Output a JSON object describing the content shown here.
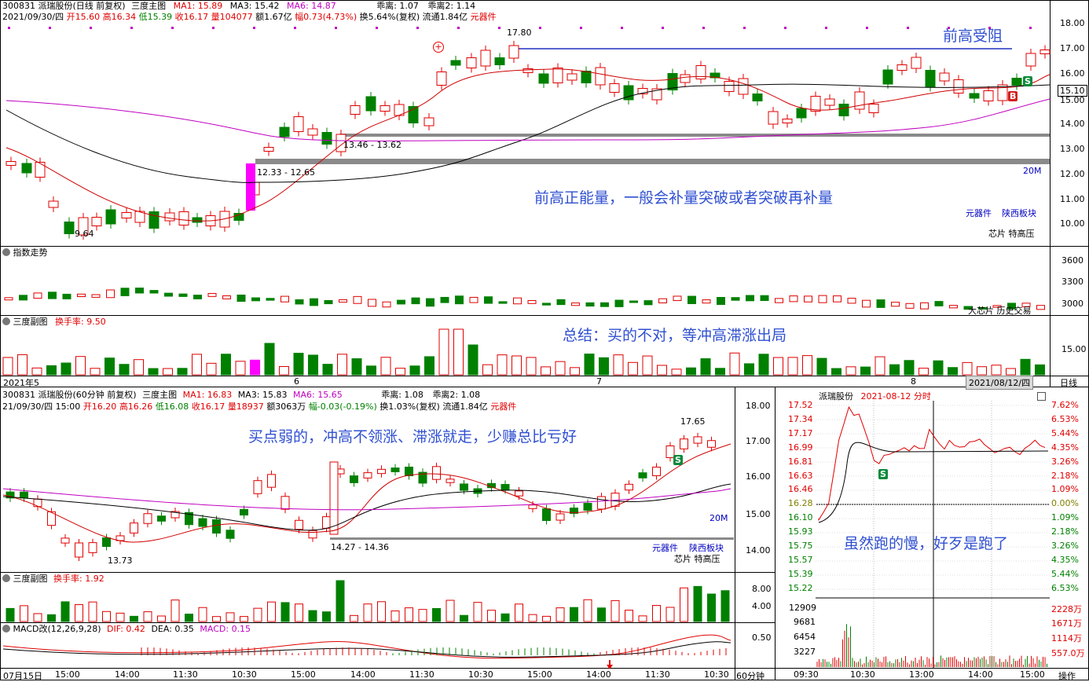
{
  "top_chart": {
    "header_line1": {
      "code_name": "300831 派瑞股份(日线 前复权)",
      "main": "三度主图",
      "ma1": "MA1: 15.89",
      "ma3": "MA3: 15.42",
      "ma6": "MA6: 14.87",
      "cheng1": "乖离: 1.07",
      "cheng2": "乖离2: 1.14"
    },
    "header_line2": {
      "date": "2021/09/30/四",
      "open": "开15.60",
      "high": "高16.34",
      "low": "低15.39",
      "close": "收16.17",
      "vol": "量104077",
      "amount": "额1.67亿",
      "change": "幅0.73(4.73%)",
      "turnover": "换5.64%(复权)",
      "float": "流通1.84亿",
      "sector": "元器件"
    },
    "price_axis": [
      "18.00",
      "17.00",
      "16.00",
      "15.10",
      "15.00",
      "14.00",
      "13.00",
      "12.00",
      "11.00",
      "10.00"
    ],
    "labels": {
      "high": "17.80",
      "low": "9.64",
      "range1": "12.33 - 12.65",
      "range2": "13.46 - 13.62",
      "vol_unit": "20M",
      "sector_a": "元器件",
      "sector_b": "陕西板块",
      "concept": "芯片 特高压",
      "badge_s": "S",
      "badge_b": "B"
    },
    "notes": {
      "resistance": "前高受阻",
      "breakout": "前高正能量，一般会补量突破或者突破再补量"
    }
  },
  "index_panel": {
    "title": "指数走势",
    "axis": [
      "3600",
      "3300",
      "3000"
    ],
    "footer": "大芯片 历史交易"
  },
  "turnover_panel": {
    "title": "三度副图",
    "value": "换手率: 9.50",
    "axis": [
      "15.00"
    ],
    "note": "总结：买的不对，等冲高滞涨出局"
  },
  "date_axis": {
    "labels": [
      "2021年5",
      "6",
      "7",
      "8"
    ],
    "current": "2021/08/12/四",
    "period": "日线"
  },
  "bottom_chart": {
    "header_line1": {
      "code_name": "300831 派瑞股份(60分钟 前复权)",
      "main": "三度主图",
      "ma1": "MA1: 16.83",
      "ma3": "MA3: 15.83",
      "ma6": "MA6: 15.65",
      "cheng1": "乖离: 1.08",
      "cheng2": "乖离2: 1.08"
    },
    "header_line2": {
      "date": "21/09/30/四 15:00",
      "open": "开16.20",
      "high": "高16.26",
      "low": "低16.08",
      "close": "收16.17",
      "vol": "量18937",
      "amount": "额3063万",
      "change": "幅-0.03(-0.19%)",
      "turnover": "换1.03%(复权)",
      "float": "流通1.84亿",
      "sector": "元器件"
    },
    "price_axis": [
      "18.00",
      "17.00",
      "16.00",
      "15.00",
      "14.00"
    ],
    "labels": {
      "high": "17.65",
      "low": "13.73",
      "range": "14.27 - 14.36",
      "vol_unit": "20M",
      "sector_a": "元器件",
      "sector_b": "陕西板块",
      "concept": "芯片 特高压",
      "badge_s": "S"
    },
    "note": "买点弱的，冲高不领涨、滞涨就走，少赚总比亏好",
    "turnover": {
      "title": "三度副图",
      "value": "换手率: 1.92",
      "axis": [
        "8.00",
        "4.00"
      ]
    },
    "macd": {
      "title": "MACD改(12,26,9,28)",
      "dif": "DIF: 0.42",
      "dea": "DEA: 0.35",
      "macd": "MACD: 0.15",
      "axis": [
        "0.50"
      ]
    },
    "time_axis": [
      "07月15日",
      "15:00",
      "14:00",
      "11:30",
      "10:30",
      "15:00",
      "14:00",
      "11:30",
      "10:30",
      "15:00",
      "14:00",
      "11:30",
      "10:30"
    ],
    "period": "60分钟"
  },
  "intraday": {
    "title": "派瑞股份",
    "date_title": "2021-08-12 分时",
    "price_axis": [
      "17.52",
      "17.34",
      "17.17",
      "16.99",
      "16.81",
      "16.63",
      "16.46",
      "16.28",
      "16.10",
      "15.93",
      "15.75",
      "15.57",
      "15.39",
      "15.22"
    ],
    "pct_axis": [
      "7.62%",
      "6.53%",
      "5.44%",
      "4.35%",
      "3.26%",
      "2.18%",
      "1.09%",
      "0.00%",
      "1.09%",
      "2.18%",
      "3.26%",
      "4.35%",
      "5.44%",
      "6.53%"
    ],
    "vol_axis": [
      "12909",
      "9681",
      "6454",
      "3227"
    ],
    "vol_axis_right": [
      "2228万",
      "1671万",
      "1114万",
      "557.0万"
    ],
    "time_axis": [
      "09:30",
      "10:30",
      "13:00",
      "14:00",
      "15:00"
    ],
    "note": "虽然跑的慢，好歹是跑了",
    "badge_s": "S",
    "footer": "操作"
  },
  "colors": {
    "up": "#e00000",
    "down": "#008000",
    "ma1": "#d00000",
    "ma3": "#000000",
    "ma6": "#c000c0",
    "note": "#3050d0"
  }
}
